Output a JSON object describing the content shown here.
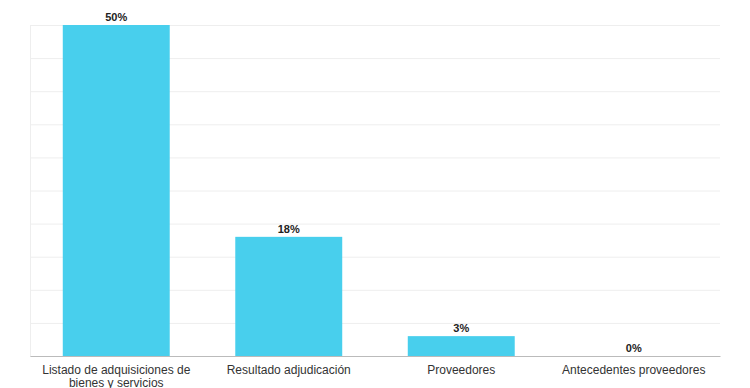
{
  "chart_data": {
    "type": "bar",
    "categories": [
      "Listado de adquisiciones de bienes y servicios",
      "Resultado adjudicación",
      "Proveedores",
      "Antecedentes proveedores"
    ],
    "values": [
      50,
      18,
      3,
      0
    ],
    "value_labels": [
      "50%",
      "18%",
      "3%",
      "0%"
    ],
    "color": "#48cfed",
    "ylim": [
      0,
      50
    ],
    "yticks": [
      0,
      5,
      10,
      15,
      20,
      25,
      30,
      35,
      40,
      45,
      50
    ],
    "grid": true,
    "data_labels": true,
    "tick_labels": "x"
  }
}
